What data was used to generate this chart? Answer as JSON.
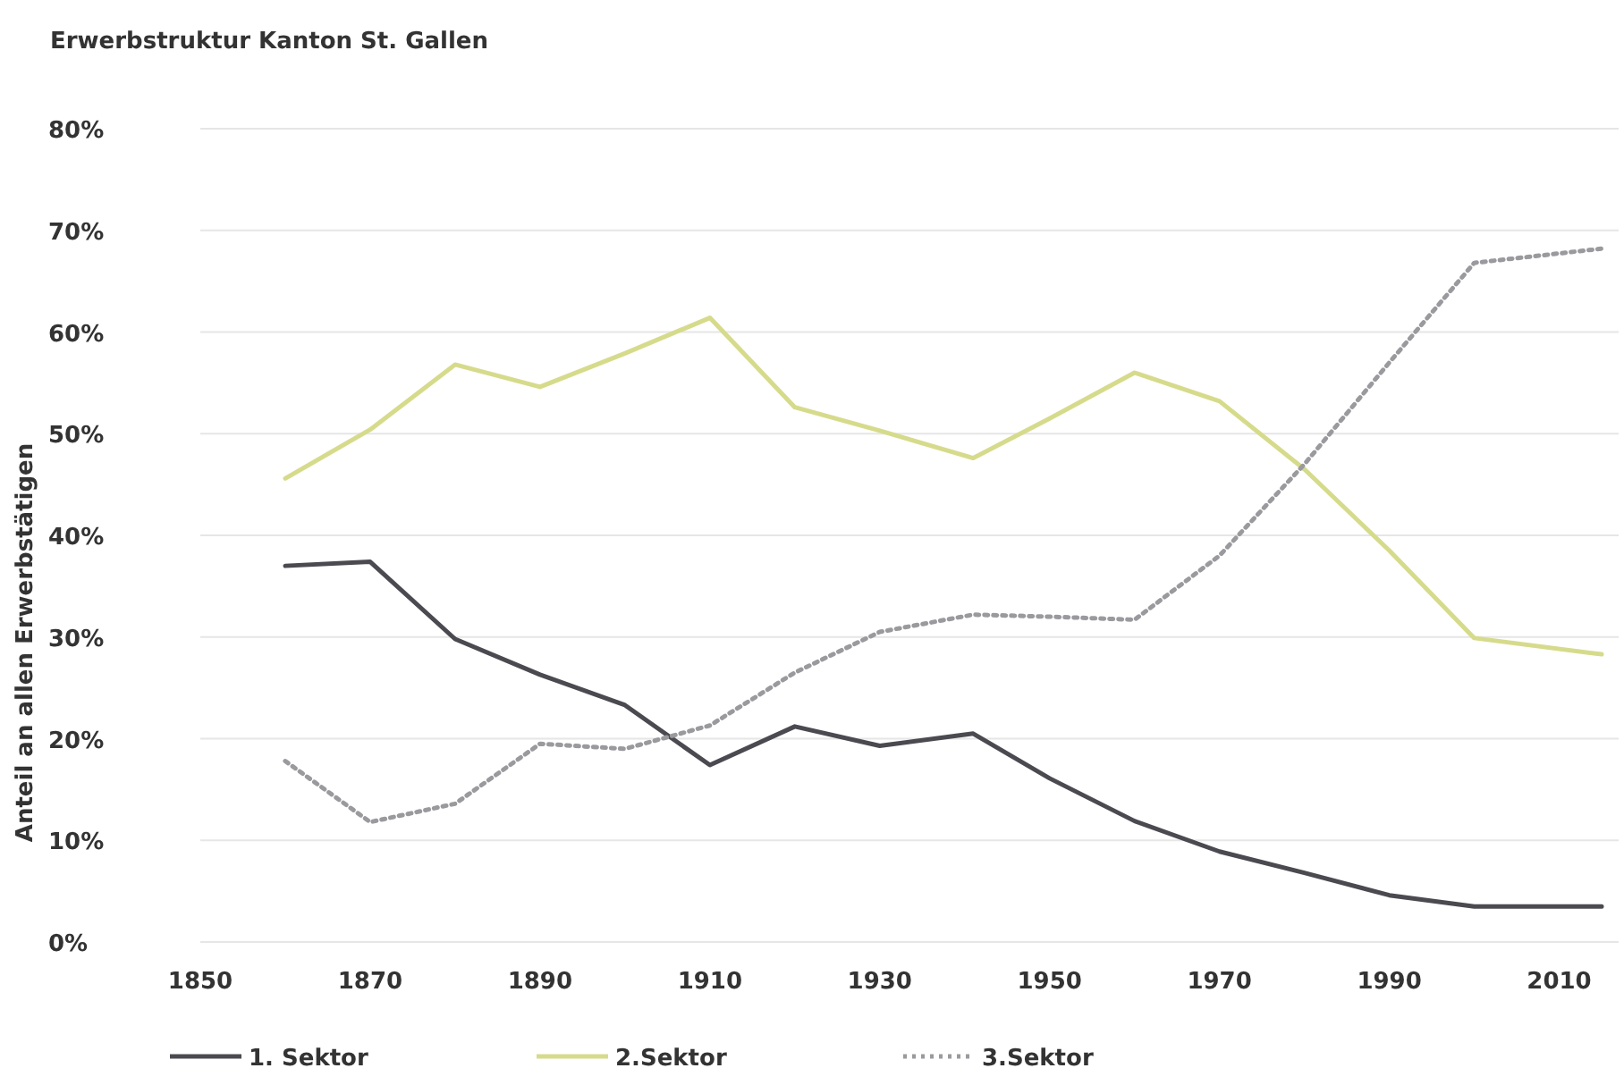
{
  "chart_data": {
    "type": "line",
    "title": "Erwerbstruktur Kanton St. Gallen",
    "ylabel": "Anteil an allen Erwerbstätigen",
    "x": [
      1860,
      1870,
      1880,
      1890,
      1900,
      1910,
      1920,
      1930,
      1941,
      1950,
      1960,
      1970,
      1980,
      1990,
      2000,
      2015
    ],
    "series": [
      {
        "name": "1. Sektor",
        "color": "#4a4a50",
        "line_style": "solid",
        "values": [
          37.0,
          37.4,
          29.8,
          26.3,
          23.3,
          17.4,
          21.2,
          19.3,
          20.5,
          16.1,
          11.9,
          8.9,
          6.8,
          4.6,
          3.5,
          3.5
        ]
      },
      {
        "name": "2.Sektor",
        "color": "#d6db8c",
        "line_style": "solid",
        "values": [
          45.6,
          50.4,
          56.8,
          54.6,
          57.9,
          61.4,
          52.6,
          50.3,
          47.6,
          51.5,
          56.0,
          53.2,
          46.5,
          38.5,
          29.9,
          28.3
        ]
      },
      {
        "name": "3.Sektor",
        "color": "#9a9a9e",
        "line_style": "dotted",
        "values": [
          17.8,
          11.8,
          13.6,
          19.5,
          19.0,
          21.3,
          26.5,
          30.5,
          32.2,
          32.0,
          31.7,
          38.0,
          47.0,
          57.0,
          66.8,
          68.2
        ]
      }
    ],
    "xlim": [
      1850,
      2017
    ],
    "xticks": [
      1850,
      1870,
      1890,
      1910,
      1930,
      1950,
      1970,
      1990,
      2010
    ],
    "ylim": [
      0,
      80
    ],
    "yticks": [
      {
        "value": 0,
        "label": "0%"
      },
      {
        "value": 10,
        "label": "10%"
      },
      {
        "value": 20,
        "label": "20%"
      },
      {
        "value": 30,
        "label": "30%"
      },
      {
        "value": 40,
        "label": "40%"
      },
      {
        "value": 50,
        "label": "50%"
      },
      {
        "value": 60,
        "label": "60%"
      },
      {
        "value": 70,
        "label": "70%"
      },
      {
        "value": 80,
        "label": "80%"
      }
    ],
    "grid": "y",
    "legend": "bottom",
    "marker": "none"
  }
}
